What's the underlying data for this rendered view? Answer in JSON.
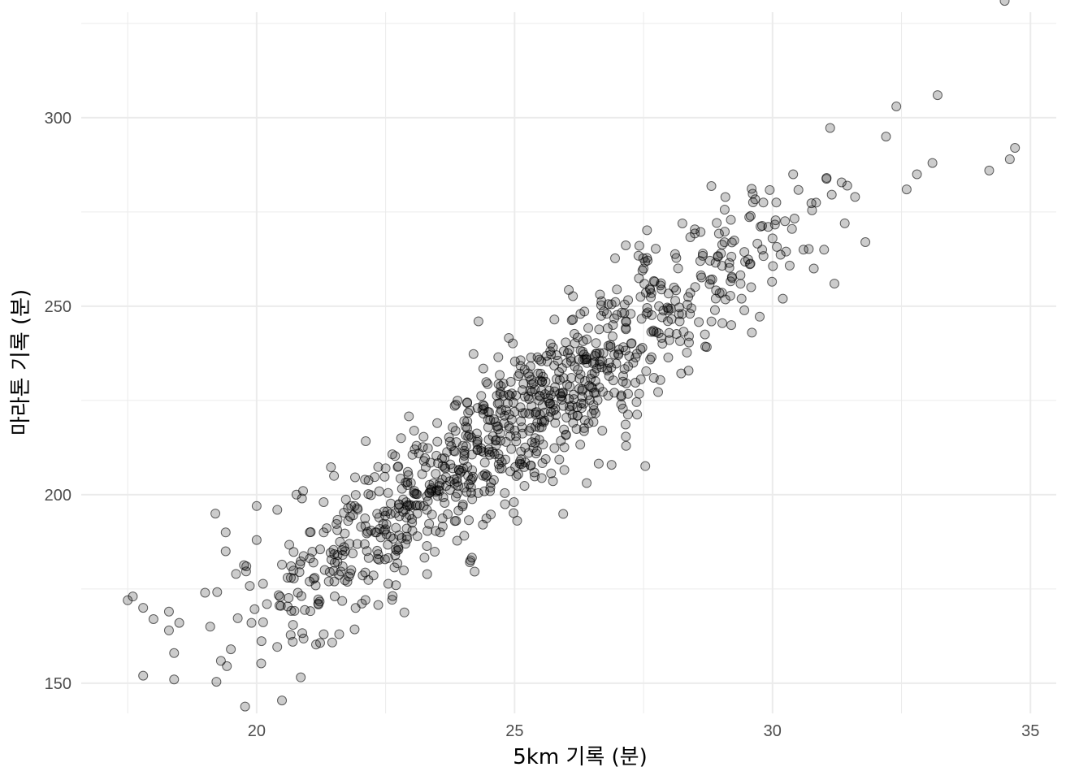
{
  "chart_data": {
    "type": "scatter",
    "title": "",
    "xlabel": "5km 기록 (분)",
    "ylabel": "마라톤 기록 (분)",
    "xlim": [
      16.6,
      35.5
    ],
    "ylim": [
      142,
      328
    ],
    "x_ticks": [
      20,
      25,
      30,
      35
    ],
    "y_ticks": [
      150,
      200,
      250,
      300
    ],
    "x_minor": [
      17.5,
      22.5,
      27.5,
      32.5
    ],
    "y_minor": [
      175,
      225,
      275,
      325
    ],
    "grid": true,
    "legend": "none",
    "point_color": "#000000",
    "point_opacity": 0.2,
    "sampled_points": {
      "x": [
        17.5,
        17.6,
        17.8,
        17.8,
        18.0,
        18.3,
        18.3,
        18.4,
        18.4,
        18.5,
        19.0,
        19.1,
        19.2,
        19.4,
        19.4,
        19.5,
        19.6,
        19.8,
        19.9,
        20.0,
        20.0,
        20.2,
        20.4,
        20.6,
        20.7,
        20.8,
        20.9,
        21.1,
        21.3,
        21.5,
        21.6,
        21.8,
        21.9,
        22.1,
        22.3,
        22.5,
        22.7,
        22.8,
        22.9,
        23.1,
        23.3,
        23.5,
        23.6,
        23.8,
        24.0,
        24.1,
        24.3,
        24.5,
        24.6,
        24.8,
        25.0,
        25.2,
        25.4,
        25.6,
        25.7,
        25.9,
        26.1,
        26.3,
        26.5,
        26.7,
        26.9,
        27.1,
        27.3,
        27.5,
        27.7,
        27.8,
        28.0,
        28.2,
        28.4,
        28.6,
        28.8,
        29.0,
        29.2,
        29.4,
        29.6,
        29.8,
        30.0,
        30.2,
        30.4,
        30.6,
        30.8,
        31.0,
        31.2,
        31.4,
        31.6,
        31.8,
        32.2,
        32.4,
        32.6,
        32.8,
        33.1,
        33.2,
        34.2,
        34.5,
        34.6,
        34.7
      ],
      "y": [
        172,
        173,
        170,
        152,
        167,
        169,
        164,
        158,
        151,
        166,
        174,
        165,
        195,
        185,
        190,
        159,
        179,
        181,
        166,
        188,
        197,
        171,
        196,
        178,
        161,
        174,
        201,
        182,
        190,
        205,
        163,
        187,
        197,
        204,
        190,
        207,
        176,
        215,
        198,
        213,
        196,
        219,
        204,
        207,
        213,
        205,
        246,
        212,
        220,
        219,
        222,
        226,
        215,
        230,
        240,
        226,
        231,
        223,
        232,
        217,
        242,
        230,
        235,
        260,
        231,
        250,
        241,
        246,
        248,
        262,
        257,
        264,
        245,
        252,
        243,
        265,
        268,
        252,
        285,
        265,
        260,
        265,
        256,
        272,
        279,
        267,
        295,
        303,
        281,
        285,
        288,
        306,
        286,
        331,
        289,
        292
      ]
    }
  }
}
